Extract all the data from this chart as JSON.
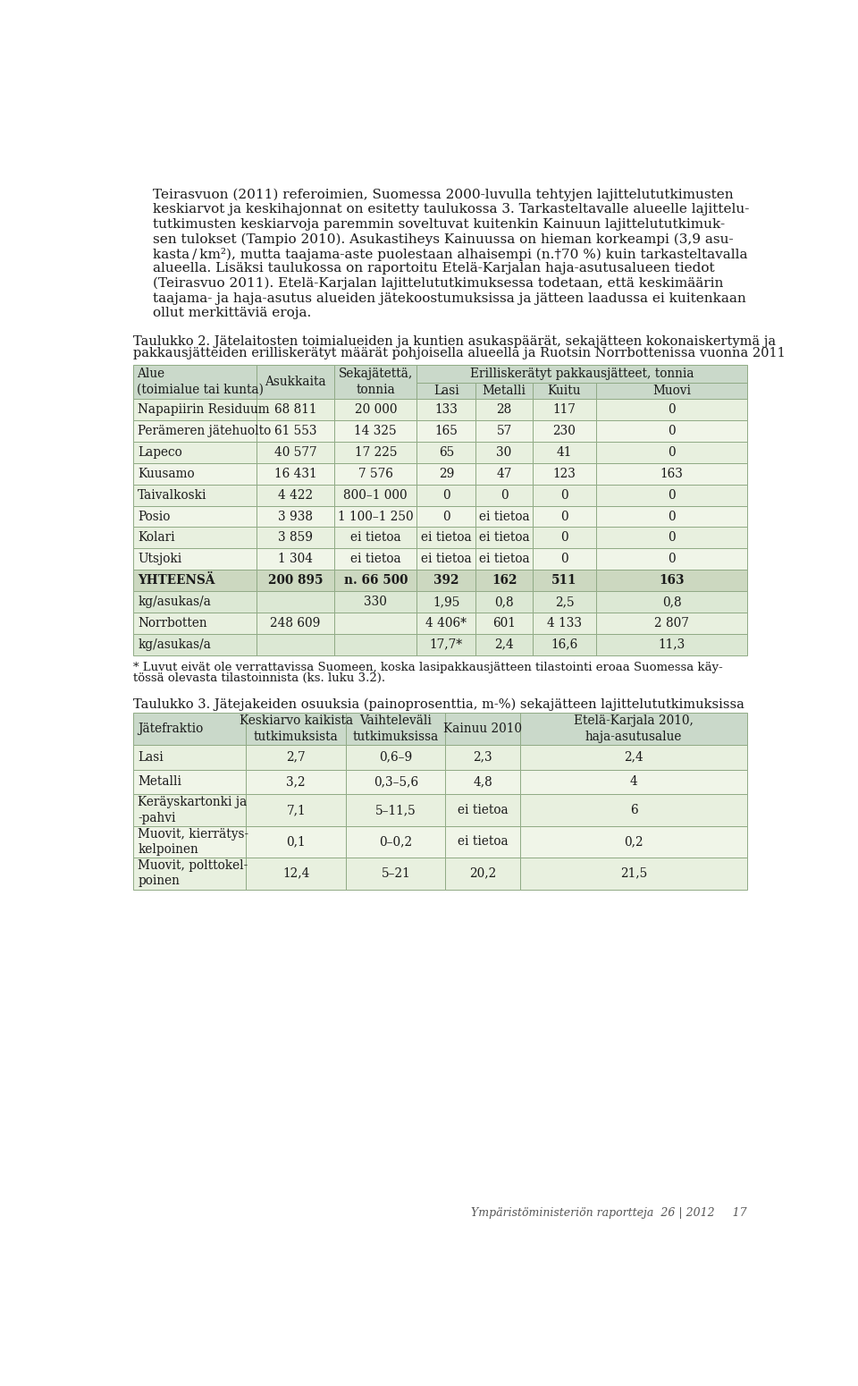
{
  "page_bg": "#ffffff",
  "text_color": "#1a1a1a",
  "body_lines": [
    "Teirasvuon (2011) referoimien, Suomessa 2000-luvulla tehtyjen lajittelututkimusten",
    "keskiarvot ja keskihajonnat on esitetty taulukossa 3. Tarkasteltavalle alueelle lajittelu-",
    "tutkimusten keskiarvoja paremmin soveltuvat kuitenkin Kainuun lajittelututkimuk-",
    "sen tulokset (Tampio 2010). Asukastiheys Kainuussa on hieman korkeampi (3,9 asu-",
    "kasta / km²), mutta taajama-aste puolestaan alhaisempi (n.†70 %) kuin tarkasteltavalla",
    "alueella. Lisäksi taulukossa on raportoitu Etelä-Karjalan haja-asutusalueen tiedot",
    "(Teirasvuo 2011). Etelä-Karjalan lajittelututkimuksessa todetaan, että keskimäärin",
    "taajama- ja haja-asutus alueiden jätekoostumuksissa ja jätteen laadussa ei kuitenkaan",
    "ollut merkittäviä eroja."
  ],
  "t2_title_line1": "Taulukko 2. Jätelaitosten toimialueiden ja kuntien asukaspäärät, sekajätteen kokonaiskertymä ja",
  "t2_title_line2": "pakkausjätteiden erilliskerätyt määrät pohjoisella alueella ja Ruotsin Norrbottenissa vuonna 2011",
  "t2_col_labels_top": [
    "Alue\n(toimialue tai kunta)",
    "Asukkaita",
    "Sekajätettä,\ntonnia",
    "Erilliskerätyt pakkausjätteet, tonnia"
  ],
  "t2_col_labels_sub": [
    "Lasi",
    "Metalli",
    "Kuitu",
    "Muovi"
  ],
  "table2_rows": [
    [
      "Napapiirin Residuum",
      "68 811",
      "20 000",
      "133",
      "28",
      "117",
      "0"
    ],
    [
      "Perämeren jätehuolto",
      "61 553",
      "14 325",
      "165",
      "57",
      "230",
      "0"
    ],
    [
      "Lapeco",
      "40 577",
      "17 225",
      "65",
      "30",
      "41",
      "0"
    ],
    [
      "Kuusamo",
      "16 431",
      "7 576",
      "29",
      "47",
      "123",
      "163"
    ],
    [
      "Taivalkoski",
      "4 422",
      "800–1 000",
      "0",
      "0",
      "0",
      "0"
    ],
    [
      "Posio",
      "3 938",
      "1 100–1 250",
      "0",
      "ei tietoa",
      "0",
      "0"
    ],
    [
      "Kolari",
      "3 859",
      "ei tietoa",
      "ei tietoa",
      "ei tietoa",
      "0",
      "0"
    ],
    [
      "Utsjoki",
      "1 304",
      "ei tietoa",
      "ei tietoa",
      "ei tietoa",
      "0",
      "0"
    ]
  ],
  "table2_total": [
    "YHTEENSÄ",
    "200 895",
    "n. 66 500",
    "392",
    "162",
    "511",
    "163"
  ],
  "table2_kg1": [
    "kg/asukas/a",
    "",
    "330",
    "1,95",
    "0,8",
    "2,5",
    "0,8"
  ],
  "table2_norr": [
    "Norrbotten",
    "248 609",
    "",
    "4 406*",
    "601",
    "4 133",
    "2 807"
  ],
  "table2_kg2": [
    "kg/asukas/a",
    "",
    "",
    "17,7*",
    "2,4",
    "16,6",
    "11,3"
  ],
  "table2_footnote_line1": "* Luvut eivät ole verrattavissa Suomeen, koska lasipakkausjätteen tilastointi eroaa Suomessa käy-",
  "table2_footnote_line2": "tössä olevasta tilastoinnista (ks. luku 3.2).",
  "t3_title": "Taulukko 3. Jätejakeiden osuuksia (painoprosenttia, m-%) sekajätteen lajittelututkimuksissa",
  "t3_headers": [
    "Jätefraktio",
    "Keskiarvo kaikista\ntutkimuksista",
    "Vaihteleväli\ntutkimuksissa",
    "Kainuu 2010",
    "Etelä-Karjala 2010,\nhaja-asutusalue"
  ],
  "table3_rows": [
    [
      "Lasi",
      "2,7",
      "0,6–9",
      "2,3",
      "2,4"
    ],
    [
      "Metalli",
      "3,2",
      "0,3–5,6",
      "4,8",
      "4"
    ],
    [
      "Keräyskartonki ja\n-pahvi",
      "7,1",
      "5–11,5",
      "ei tietoa",
      "6"
    ],
    [
      "Muovit, kierrätys-\nkelpoinen",
      "0,1",
      "0–0,2",
      "ei tietoa",
      "0,2"
    ],
    [
      "Muovit, polttokel-\npoinen",
      "12,4",
      "5–21",
      "20,2",
      "21,5"
    ]
  ],
  "footer_text": "Ympäristöministeriön raportteja  26 | 2012     17",
  "header_bg": "#cad9ca",
  "row_bg_even": "#e8f0df",
  "row_bg_odd": "#f0f5e8",
  "total_bg": "#ccd8c0",
  "kg_bg": "#dce8d4",
  "border_color": "#90aa85",
  "title_fontsize": 10.5,
  "body_fontsize": 11.0,
  "table_fontsize": 9.8
}
